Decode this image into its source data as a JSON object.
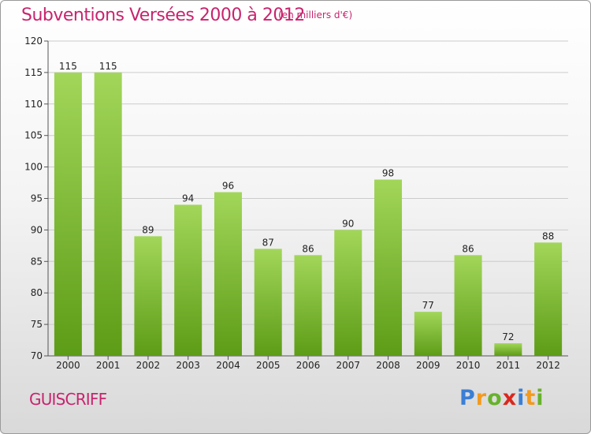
{
  "header": {
    "title": "Subventions Versées 2000 à 2012",
    "unit": "(en milliers d'€)"
  },
  "footer": {
    "commune": "GUISCRIFF",
    "logo": [
      "P",
      "r",
      "o",
      "x",
      "i",
      "t",
      "i"
    ],
    "logo_colors": [
      "#3a7fd5",
      "#f39a1e",
      "#67b22b",
      "#d9281d",
      "#3a7fd5",
      "#f39a1e",
      "#67b22b"
    ]
  },
  "colors": {
    "title": "#c8246e",
    "bar_top": "#a2d65a",
    "bar_bottom": "#5d9c16",
    "grid": "#cccccc"
  },
  "chart_data": {
    "type": "bar",
    "title": "Subventions Versées 2000 à 2012",
    "subtitle": "(en milliers d'€)",
    "categories": [
      "2000",
      "2001",
      "2002",
      "2003",
      "2004",
      "2005",
      "2006",
      "2007",
      "2008",
      "2009",
      "2010",
      "2011",
      "2012"
    ],
    "values": [
      115,
      115,
      89,
      94,
      96,
      87,
      86,
      90,
      98,
      77,
      86,
      72,
      88
    ],
    "ylim": [
      70,
      120
    ],
    "yticks": [
      70,
      75,
      80,
      85,
      90,
      95,
      100,
      105,
      110,
      115,
      120
    ],
    "grid": true,
    "show_value_labels": true
  }
}
